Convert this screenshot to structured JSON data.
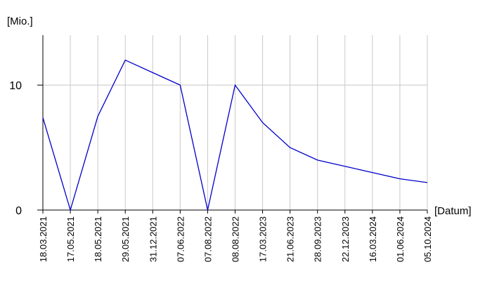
{
  "chart_data": {
    "type": "line",
    "y_label": "[Mio.]",
    "x_label": "[Datum]",
    "categories": [
      "18.03.2021",
      "17.05.2021",
      "18.05.2021",
      "29.05.2021",
      "31.12.2021",
      "07.06.2022",
      "07.08.2022",
      "08.08.2022",
      "17.03.2023",
      "21.06.2023",
      "28.09.2023",
      "22.12.2023",
      "16.03.2024",
      "01.06.2024",
      "05.10.2024"
    ],
    "series": [
      {
        "color": "#0000cc",
        "values": [
          7.4,
          0,
          7.5,
          12,
          11,
          10,
          0,
          10,
          7,
          5,
          4,
          3.5,
          3,
          2.5,
          2.2
        ]
      }
    ],
    "ylim": [
      0,
      14
    ],
    "yticks": [
      0,
      10
    ],
    "grid": true
  }
}
